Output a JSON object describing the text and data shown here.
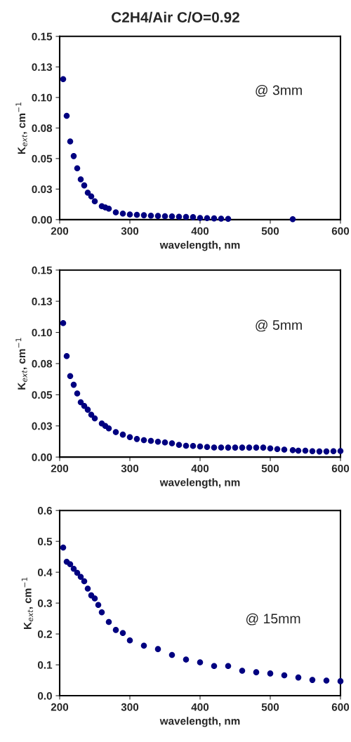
{
  "chart_data": [
    {
      "type": "scatter",
      "title": "C2H4/Air C/O=0.92",
      "xlabel": "wavelength, nm",
      "ylabel": "K$_{ext}$, cm$^{−1}$",
      "annotations": [
        "@ 3mm"
      ],
      "marker": "circle",
      "grid": false,
      "x": [
        205,
        210,
        215,
        220,
        225,
        230,
        235,
        240,
        245,
        250,
        260,
        265,
        270,
        280,
        290,
        300,
        310,
        320,
        330,
        340,
        350,
        360,
        370,
        380,
        390,
        400,
        410,
        420,
        430,
        440,
        532
      ],
      "series": [
        {
          "color": "#000080",
          "values": [
            0.115,
            0.085,
            0.064,
            0.052,
            0.042,
            0.033,
            0.028,
            0.022,
            0.019,
            0.015,
            0.011,
            0.01,
            0.009,
            0.006,
            0.005,
            0.0042,
            0.004,
            0.0036,
            0.0032,
            0.003,
            0.0028,
            0.0026,
            0.0024,
            0.0022,
            0.002,
            0.0014,
            0.0012,
            0.001,
            0.0008,
            0.0006,
            0.0004
          ]
        }
      ],
      "xlim": [
        200,
        600
      ],
      "xticks": [
        200,
        300,
        400,
        500,
        600
      ],
      "ylim": [
        0,
        0.15
      ],
      "yticks": [
        {
          "value": 0,
          "label": "0.00"
        },
        {
          "value": 0.025,
          "label": "0.03"
        },
        {
          "value": 0.05,
          "label": "0.05"
        },
        {
          "value": 0.075,
          "label": "0.08"
        },
        {
          "value": 0.1,
          "label": "0.10"
        },
        {
          "value": 0.125,
          "label": "0.13"
        },
        {
          "value": 0.15,
          "label": "0.15"
        }
      ]
    },
    {
      "type": "scatter",
      "xlabel": "wavelength, nm",
      "ylabel": "K$_{ext}$, cm$^{−1}$",
      "annotations": [
        "@ 5mm"
      ],
      "marker": "circle",
      "grid": false,
      "x": [
        205,
        210,
        215,
        220,
        225,
        230,
        235,
        240,
        245,
        250,
        260,
        265,
        270,
        280,
        290,
        300,
        310,
        320,
        330,
        340,
        350,
        360,
        370,
        380,
        390,
        400,
        410,
        420,
        430,
        440,
        450,
        460,
        470,
        480,
        490,
        500,
        510,
        520,
        532,
        540,
        550,
        560,
        570,
        580,
        590,
        600
      ],
      "series": [
        {
          "color": "#000080",
          "values": [
            0.1075,
            0.081,
            0.065,
            0.058,
            0.051,
            0.044,
            0.041,
            0.038,
            0.034,
            0.031,
            0.027,
            0.025,
            0.023,
            0.02,
            0.018,
            0.016,
            0.0145,
            0.0136,
            0.013,
            0.0123,
            0.0117,
            0.011,
            0.0098,
            0.0091,
            0.0089,
            0.0085,
            0.0081,
            0.0077,
            0.0077,
            0.0076,
            0.0076,
            0.0076,
            0.0076,
            0.0076,
            0.0076,
            0.007,
            0.0064,
            0.006,
            0.0055,
            0.0051,
            0.0051,
            0.0047,
            0.0045,
            0.0045,
            0.0047,
            0.0049
          ]
        }
      ],
      "xlim": [
        200,
        600
      ],
      "xticks": [
        200,
        300,
        400,
        500,
        600
      ],
      "ylim": [
        0,
        0.15
      ],
      "yticks": [
        {
          "value": 0,
          "label": "0.00"
        },
        {
          "value": 0.025,
          "label": "0.03"
        },
        {
          "value": 0.05,
          "label": "0.05"
        },
        {
          "value": 0.075,
          "label": "0.08"
        },
        {
          "value": 0.1,
          "label": "0.10"
        },
        {
          "value": 0.125,
          "label": "0.13"
        },
        {
          "value": 0.15,
          "label": "0.15"
        }
      ]
    },
    {
      "type": "scatter",
      "xlabel": "wavelength, nm",
      "ylabel": "K$_{ext}$, cm$^{−1}$",
      "annotations": [
        "@ 15mm"
      ],
      "marker": "circle",
      "grid": false,
      "x": [
        205,
        210,
        215,
        220,
        225,
        230,
        235,
        240,
        245,
        250,
        255,
        260,
        270,
        280,
        290,
        300,
        320,
        340,
        360,
        380,
        400,
        420,
        440,
        460,
        480,
        500,
        520,
        540,
        560,
        580,
        600
      ],
      "series": [
        {
          "color": "#000080",
          "values": [
            0.48,
            0.434,
            0.426,
            0.411,
            0.398,
            0.385,
            0.371,
            0.347,
            0.325,
            0.315,
            0.294,
            0.27,
            0.239,
            0.213,
            0.203,
            0.179,
            0.162,
            0.151,
            0.132,
            0.117,
            0.108,
            0.096,
            0.096,
            0.081,
            0.076,
            0.072,
            0.066,
            0.059,
            0.051,
            0.049,
            0.047
          ]
        }
      ],
      "xlim": [
        200,
        600
      ],
      "xticks": [
        200,
        300,
        400,
        500,
        600
      ],
      "ylim": [
        0,
        0.6
      ],
      "yticks": [
        {
          "value": 0,
          "label": "0.0"
        },
        {
          "value": 0.1,
          "label": "0.1"
        },
        {
          "value": 0.2,
          "label": "0.2"
        },
        {
          "value": 0.3,
          "label": "0.3"
        },
        {
          "value": 0.4,
          "label": "0.4"
        },
        {
          "value": 0.5,
          "label": "0.5"
        },
        {
          "value": 0.6,
          "label": "0.6"
        }
      ]
    }
  ]
}
